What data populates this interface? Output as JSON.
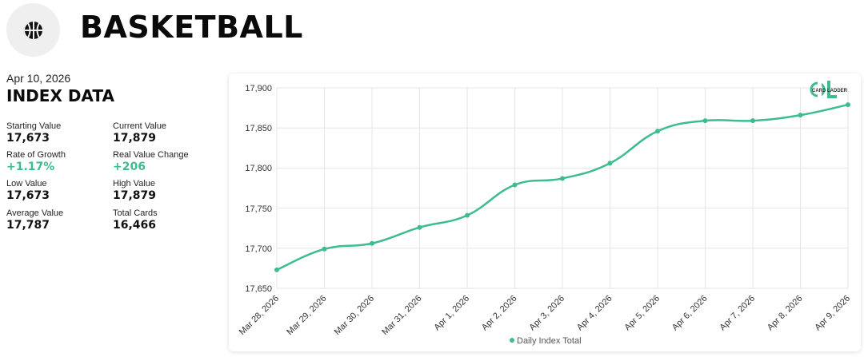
{
  "header": {
    "title": "BASKETBALL",
    "logo_icon": "basketball-icon"
  },
  "index": {
    "date": "Apr 10, 2026",
    "heading": "INDEX DATA",
    "stats": [
      {
        "label": "Starting Value",
        "value": "17,673"
      },
      {
        "label": "Current Value",
        "value": "17,879"
      },
      {
        "label": "Rate of Growth",
        "value": "+1.17%",
        "positive": true
      },
      {
        "label": "Real Value Change",
        "value": "+206",
        "positive": true
      },
      {
        "label": "Low Value",
        "value": "17,673"
      },
      {
        "label": "High Value",
        "value": "17,879"
      },
      {
        "label": "Average Value",
        "value": "17,787"
      },
      {
        "label": "Total Cards",
        "value": "16,466"
      }
    ]
  },
  "brand": {
    "watermark_text": "CARD LADDER",
    "accent_color": "#3dbd8c"
  },
  "chart_data": {
    "type": "line",
    "categories": [
      "Mar 28, 2026",
      "Mar 29, 2026",
      "Mar 30, 2026",
      "Mar 31, 2026",
      "Apr 1, 2026",
      "Apr 2, 2026",
      "Apr 3, 2026",
      "Apr 4, 2026",
      "Apr 5, 2026",
      "Apr 6, 2026",
      "Apr 7, 2026",
      "Apr 8, 2026",
      "Apr 9, 2026"
    ],
    "series": [
      {
        "name": "Daily Index Total",
        "color": "#3dbd8c",
        "values": [
          17673,
          17699,
          17706,
          17726,
          17741,
          17779,
          17787,
          17806,
          17846,
          17859,
          17859,
          17866,
          17879
        ]
      }
    ],
    "yticks": [
      "17,900",
      "17,850",
      "17,800",
      "17,750",
      "17,700",
      "17,650"
    ],
    "ylim": [
      17650,
      17900
    ],
    "grid": true,
    "legend_position": "bottom"
  }
}
